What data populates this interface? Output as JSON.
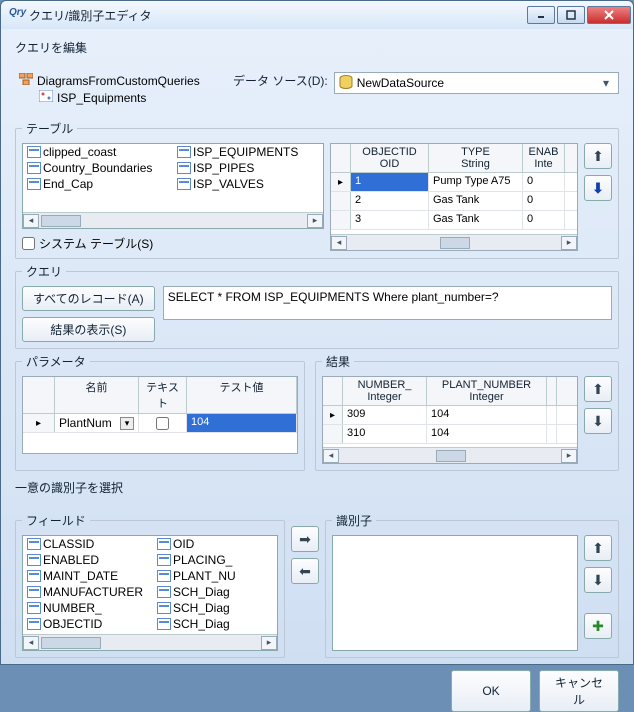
{
  "window": {
    "title": "クエリ/識別子エディタ"
  },
  "edit_section": {
    "label": "クエリを編集"
  },
  "tree": {
    "root": "DiagramsFromCustomQueries",
    "child": "ISP_Equipments"
  },
  "datasource": {
    "label": "データ ソース(D):",
    "value": "NewDataSource"
  },
  "tables": {
    "legend": "テーブル",
    "left": [
      "clipped_coast",
      "Country_Boundaries",
      "End_Cap"
    ],
    "right": [
      "ISP_EQUIPMENTS",
      "ISP_PIPES",
      "ISP_VALVES"
    ],
    "system_checkbox": "システム テーブル(S)"
  },
  "preview_grid": {
    "cols": [
      {
        "h1": "OBJECTID",
        "h2": "OID",
        "w": 78
      },
      {
        "h1": "TYPE",
        "h2": "String",
        "w": 94
      },
      {
        "h1": "ENAB",
        "h2": "Inte",
        "w": 42
      }
    ],
    "rows": [
      {
        "c": [
          "1",
          "Pump Type A75",
          "0"
        ],
        "sel": true
      },
      {
        "c": [
          "2",
          "Gas Tank",
          "0"
        ]
      },
      {
        "c": [
          "3",
          "Gas Tank",
          "0"
        ]
      }
    ]
  },
  "query": {
    "legend": "クエリ",
    "all_records_btn": "すべてのレコード(A)",
    "show_results_btn": "結果の表示(S)",
    "sql": "SELECT * FROM ISP_EQUIPMENTS Where plant_number=?"
  },
  "params": {
    "legend": "パラメータ",
    "cols": [
      "名前",
      "テキスト",
      "テスト値"
    ],
    "row": {
      "name": "PlantNum",
      "text": "",
      "test": "104"
    }
  },
  "results": {
    "legend": "結果",
    "cols": [
      {
        "h1": "NUMBER_",
        "h2": "Integer",
        "w": 84
      },
      {
        "h1": "PLANT_NUMBER",
        "h2": "Integer",
        "w": 120
      }
    ],
    "rows": [
      [
        "309",
        "104"
      ],
      [
        "310",
        "104"
      ]
    ]
  },
  "ident": {
    "label": "一意の識別子を選択",
    "fields_legend": "フィールド",
    "ident_legend": "識別子",
    "fields_left": [
      "CLASSID",
      "ENABLED",
      "MAINT_DATE",
      "MANUFACTURER",
      "NUMBER_",
      "OBJECTID"
    ],
    "fields_right": [
      "OID",
      "PLACING_",
      "PLANT_NU",
      "SCH_Diag",
      "SCH_Diag",
      "SCH_Diag"
    ]
  },
  "buttons": {
    "ok": "OK",
    "cancel": "キャンセル"
  },
  "colors": {
    "sel_bg": "#2f6fd6"
  }
}
